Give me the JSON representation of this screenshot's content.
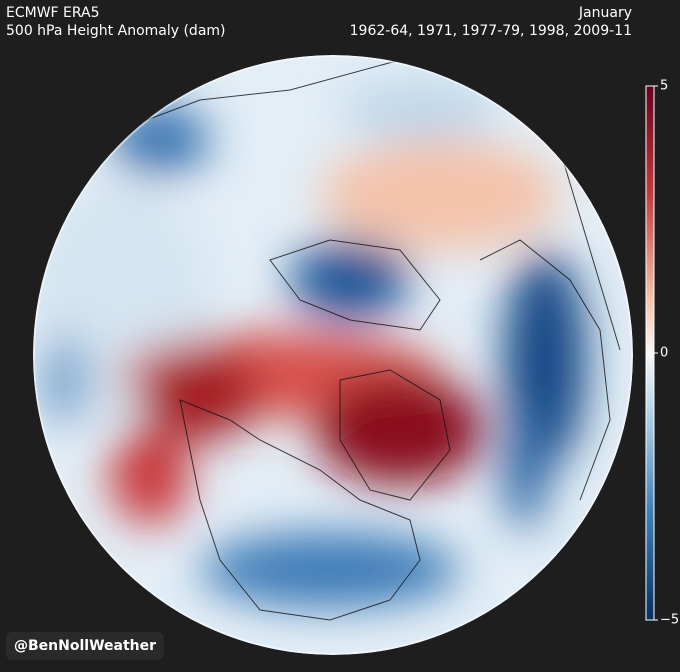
{
  "header": {
    "left": [
      "ECMWF ERA5",
      "500 hPa Height Anomaly (dam)"
    ],
    "right": [
      "January",
      "1962-64, 1971, 1977-79, 1998, 2009-11"
    ]
  },
  "colorbar": {
    "lim": [
      -5,
      5
    ],
    "ticks": [
      5,
      0,
      {
        "value": -5,
        "label": "−5"
      }
    ]
  },
  "credit": "@BenNollWeather"
}
